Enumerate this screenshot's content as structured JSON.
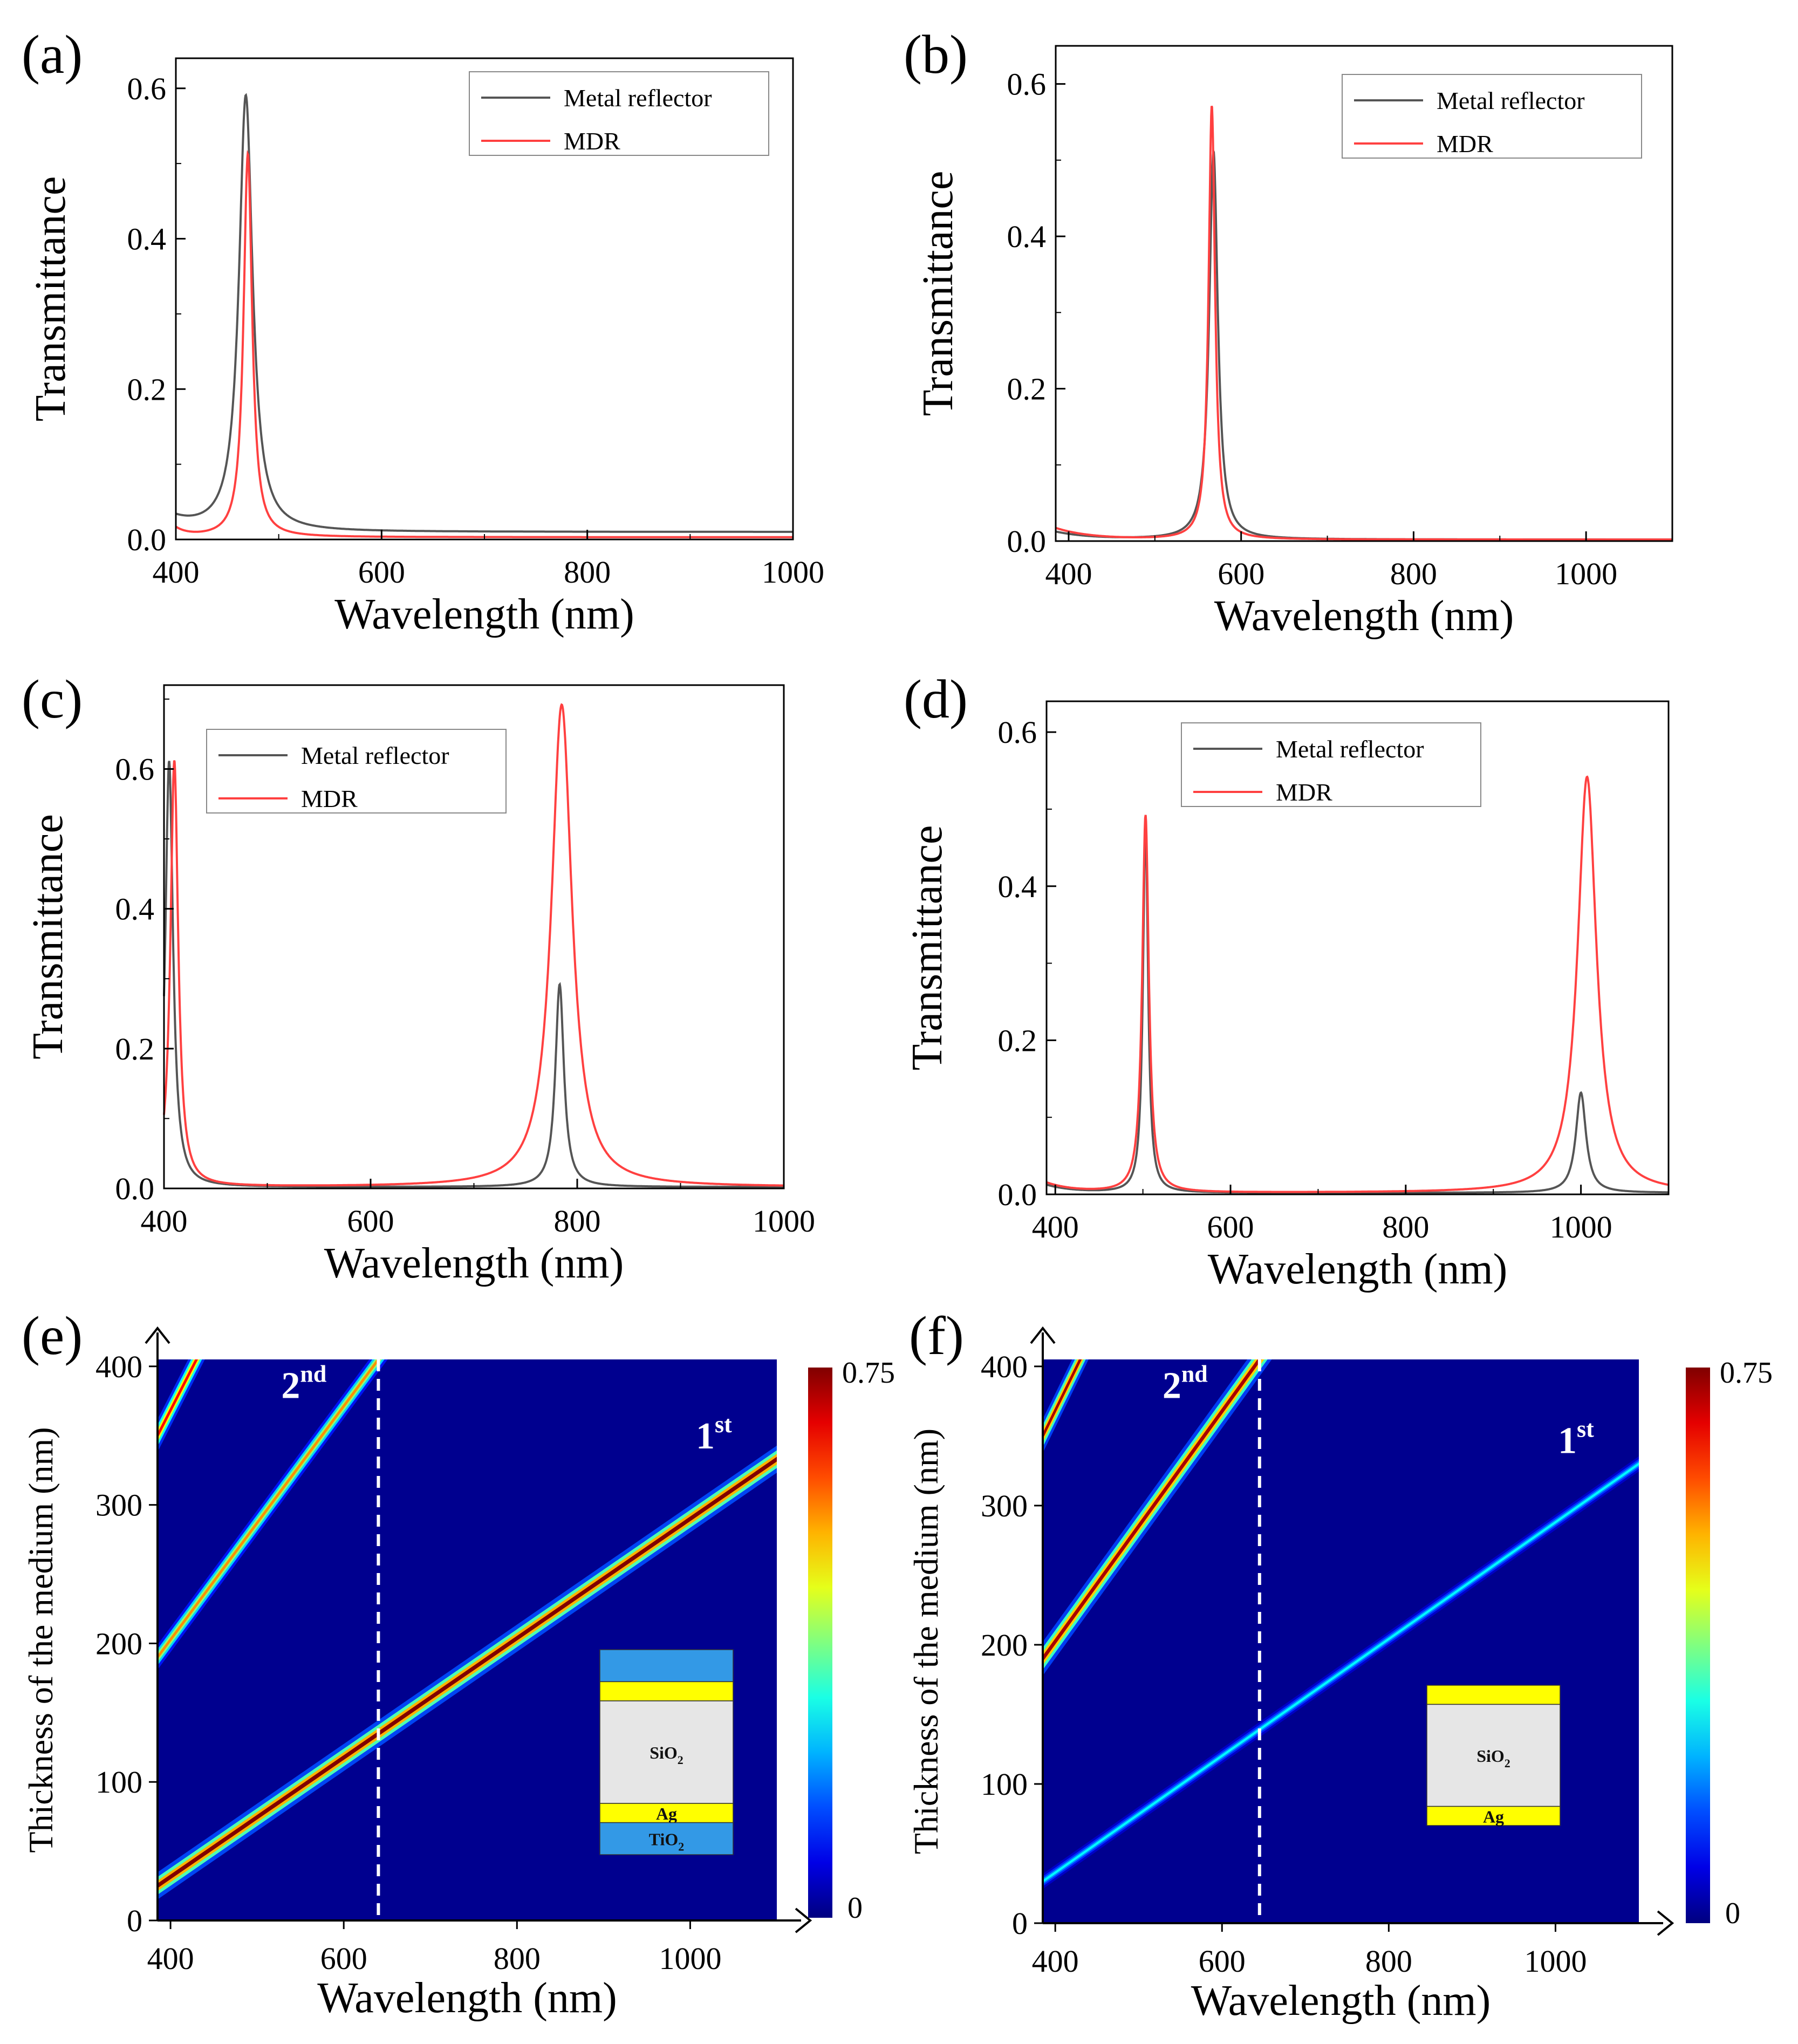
{
  "colors": {
    "metal": "#555555",
    "mdr": "#ff4040",
    "heat_bg": "#00008f",
    "heat_peak": "#c00000",
    "layer_sio2": "#e6e6e6",
    "layer_ag": "#ffff00",
    "layer_tio2": "#3399e6",
    "dashed": "#ffffff"
  },
  "chart_data": [
    {
      "panel": "(a)",
      "type": "line",
      "xlabel": "Wavelength (nm)",
      "ylabel": "Transmittance",
      "xlim": [
        400,
        1000
      ],
      "ylim": [
        0,
        0.64
      ],
      "xticks": [
        400,
        600,
        800,
        1000
      ],
      "yticks": [
        0.0,
        0.2,
        0.4,
        0.6
      ],
      "tick_labels_x": [
        "400",
        "600",
        "800",
        "1000"
      ],
      "tick_labels_y": [
        "0.0",
        "0.2",
        "0.4",
        "0.6"
      ],
      "legend": [
        "Metal reflector",
        "MDR"
      ],
      "series": [
        {
          "name": "Metal reflector",
          "peaks": [
            {
              "center": 468,
              "height": 0.58,
              "fwhm": 16
            }
          ],
          "baseline": 0.01,
          "edge": {
            "y": 0.03,
            "decay": 25
          }
        },
        {
          "name": "MDR",
          "peaks": [
            {
              "center": 470,
              "height": 0.51,
              "fwhm": 10
            }
          ],
          "baseline": 0.003,
          "edge": {
            "y": 0.04,
            "decay": 12
          }
        }
      ]
    },
    {
      "panel": "(b)",
      "type": "line",
      "xlabel": "Wavelength (nm)",
      "ylabel": "Transmittance",
      "xlim": [
        385,
        1100
      ],
      "ylim": [
        0,
        0.65
      ],
      "xticks": [
        400,
        600,
        800,
        1000
      ],
      "yticks": [
        0.0,
        0.2,
        0.4,
        0.6
      ],
      "tick_labels_x": [
        "400",
        "600",
        "800",
        "1000"
      ],
      "tick_labels_y": [
        "0.0",
        "0.2",
        "0.4",
        "0.6"
      ],
      "legend": [
        "Metal reflector",
        "MDR"
      ],
      "series": [
        {
          "name": "Metal reflector",
          "peaks": [
            {
              "center": 568,
              "height": 0.51,
              "fwhm": 12
            }
          ],
          "baseline": 0.002,
          "edge": {
            "y": 0.01,
            "decay": 40
          }
        },
        {
          "name": "MDR",
          "peaks": [
            {
              "center": 566,
              "height": 0.57,
              "fwhm": 9
            }
          ],
          "baseline": 0.002,
          "edge": {
            "y": 0.015,
            "decay": 40
          }
        }
      ]
    },
    {
      "panel": "(c)",
      "type": "line",
      "xlabel": "Wavelength (nm)",
      "ylabel": "Transmittance",
      "xlim": [
        400,
        1000
      ],
      "ylim": [
        0,
        0.72
      ],
      "xticks": [
        400,
        600,
        800,
        1000
      ],
      "yticks": [
        0.0,
        0.2,
        0.4,
        0.6
      ],
      "tick_labels_x": [
        "400",
        "600",
        "800",
        "1000"
      ],
      "tick_labels_y": [
        "0.0",
        "0.2",
        "0.4",
        "0.6"
      ],
      "legend": [
        "Metal reflector",
        "MDR"
      ],
      "series": [
        {
          "name": "Metal reflector",
          "peaks": [
            {
              "center": 405,
              "height": 0.61,
              "fwhm": 9
            },
            {
              "center": 783,
              "height": 0.29,
              "fwhm": 10
            }
          ],
          "baseline": 0.002,
          "edge": {
            "y": 0,
            "decay": 10
          }
        },
        {
          "name": "MDR",
          "peaks": [
            {
              "center": 410,
              "height": 0.61,
              "fwhm": 9
            },
            {
              "center": 785,
              "height": 0.69,
              "fwhm": 24
            }
          ],
          "baseline": 0.002,
          "edge": {
            "y": 0,
            "decay": 10
          }
        }
      ]
    },
    {
      "panel": "(d)",
      "type": "line",
      "xlabel": "Wavelength (nm)",
      "ylabel": "Transmittance",
      "xlim": [
        390,
        1100
      ],
      "ylim": [
        0,
        0.64
      ],
      "xticks": [
        400,
        600,
        800,
        1000
      ],
      "yticks": [
        0.0,
        0.2,
        0.4,
        0.6
      ],
      "tick_labels_x": [
        "400",
        "600",
        "800",
        "1000"
      ],
      "tick_labels_y": [
        "0.0",
        "0.2",
        "0.4",
        "0.6"
      ],
      "legend": [
        "Metal reflector",
        "MDR"
      ],
      "series": [
        {
          "name": "Metal reflector",
          "peaks": [
            {
              "center": 503,
              "height": 0.48,
              "fwhm": 7
            },
            {
              "center": 1000,
              "height": 0.13,
              "fwhm": 14
            }
          ],
          "baseline": 0.002,
          "edge": {
            "y": 0.012,
            "decay": 30
          }
        },
        {
          "name": "MDR",
          "peaks": [
            {
              "center": 503,
              "height": 0.49,
              "fwhm": 9
            },
            {
              "center": 1007,
              "height": 0.54,
              "fwhm": 26
            }
          ],
          "baseline": 0.002,
          "edge": {
            "y": 0.015,
            "decay": 30
          }
        }
      ]
    },
    {
      "panel": "(e)",
      "type": "heatmap",
      "xlabel": "Wavelength (nm)",
      "ylabel": "Thickness of the medium (nm)",
      "xlim": [
        385,
        1100
      ],
      "ylim": [
        0,
        405
      ],
      "xticks": [
        400,
        600,
        800,
        1000
      ],
      "yticks": [
        0,
        100,
        200,
        300,
        400
      ],
      "tick_labels_x": [
        "400",
        "600",
        "800",
        "1000"
      ],
      "tick_labels_y": [
        "0",
        "100",
        "200",
        "300",
        "400"
      ],
      "colorbar": {
        "min": 0,
        "max": 0.75,
        "min_label": "0",
        "max_label": "0.75"
      },
      "dashed_line_x": 640,
      "modes": [
        {
          "order": 1,
          "label": "1",
          "sup": "st",
          "from": [
            385,
            25
          ],
          "to": [
            1100,
            333
          ],
          "peak": 0.75,
          "width": 0.9
        },
        {
          "order": 2,
          "label": "2",
          "sup": "nd",
          "from": [
            385,
            190
          ],
          "to": [
            640,
            405
          ],
          "peak": 0.55,
          "width": 0.6
        },
        {
          "order": 3,
          "label": "",
          "sup": "",
          "from": [
            385,
            350
          ],
          "to": [
            430,
            405
          ],
          "peak": 0.65,
          "width": 0.6
        }
      ],
      "layers": [
        {
          "name": "TiO2",
          "text": "",
          "color_key": "layer_tio2",
          "h": 1.0
        },
        {
          "name": "Ag",
          "text": "",
          "color_key": "layer_ag",
          "h": 0.6
        },
        {
          "name": "SiO2",
          "text": "SiO",
          "sub": "2",
          "color_key": "layer_sio2",
          "h": 3.2
        },
        {
          "name": "Ag",
          "text": "Ag",
          "sub": "",
          "color_key": "layer_ag",
          "h": 0.6
        },
        {
          "name": "TiO2",
          "text": "TiO",
          "sub": "2",
          "color_key": "layer_tio2",
          "h": 1.0
        }
      ]
    },
    {
      "panel": "(f)",
      "type": "heatmap",
      "xlabel": "Wavelength (nm)",
      "ylabel": "Thickness of the medium (nm)",
      "xlim": [
        385,
        1100
      ],
      "ylim": [
        0,
        405
      ],
      "xticks": [
        400,
        600,
        800,
        1000
      ],
      "yticks": [
        0,
        100,
        200,
        300,
        400
      ],
      "tick_labels_x": [
        "400",
        "600",
        "800",
        "1000"
      ],
      "tick_labels_y": [
        "0",
        "100",
        "200",
        "300",
        "400"
      ],
      "colorbar": {
        "min": 0,
        "max": 0.75,
        "min_label": "0",
        "max_label": "0.75"
      },
      "dashed_line_x": 645,
      "modes": [
        {
          "order": 1,
          "label": "1",
          "sup": "st",
          "from": [
            385,
            30
          ],
          "to": [
            1100,
            330
          ],
          "peak": 0.28,
          "width": 0.5
        },
        {
          "order": 2,
          "label": "2",
          "sup": "nd",
          "from": [
            385,
            190
          ],
          "to": [
            645,
            405
          ],
          "peak": 0.72,
          "width": 0.8
        },
        {
          "order": 3,
          "label": "",
          "sup": "",
          "from": [
            385,
            350
          ],
          "to": [
            430,
            405
          ],
          "peak": 0.72,
          "width": 0.6
        }
      ],
      "layers": [
        {
          "name": "Ag",
          "text": "",
          "sub": "",
          "color_key": "layer_ag",
          "h": 0.6
        },
        {
          "name": "SiO2",
          "text": "SiO",
          "sub": "2",
          "color_key": "layer_sio2",
          "h": 3.2
        },
        {
          "name": "Ag",
          "text": "Ag",
          "sub": "",
          "color_key": "layer_ag",
          "h": 0.6
        }
      ]
    }
  ]
}
